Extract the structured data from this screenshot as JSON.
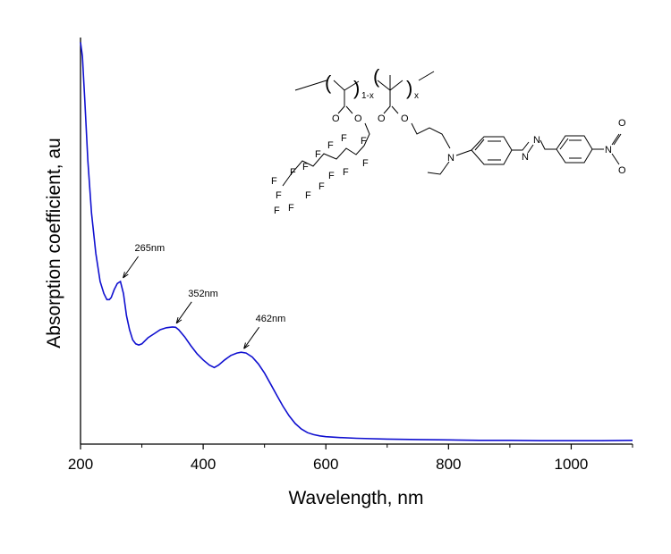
{
  "chart_data": {
    "type": "line",
    "title": "",
    "xlabel": "Wavelength, nm",
    "ylabel": "Absorption coefficient, au",
    "xlim": [
      200,
      1100
    ],
    "ylim": [
      0,
      1.0
    ],
    "x_ticks": [
      200,
      400,
      600,
      800,
      1000
    ],
    "y_ticks_labeled": false,
    "grid": false,
    "legend": "none",
    "series_color": "#1010d0",
    "series": [
      {
        "x": [
          200,
          203,
          207,
          212,
          218,
          225,
          232,
          238,
          243,
          247,
          250,
          255,
          260,
          265,
          270,
          275,
          280,
          285,
          290,
          295,
          300,
          310,
          320,
          330,
          340,
          350,
          355,
          360,
          370,
          380,
          390,
          400,
          410,
          418,
          425,
          435,
          445,
          455,
          462,
          470,
          480,
          490,
          500,
          510,
          520,
          530,
          540,
          550,
          560,
          570,
          580,
          590,
          600,
          620,
          650,
          700,
          750,
          800,
          850,
          900,
          950,
          1000,
          1050,
          1100
        ],
        "y": [
          0.995,
          0.96,
          0.85,
          0.7,
          0.57,
          0.47,
          0.4,
          0.37,
          0.355,
          0.355,
          0.36,
          0.38,
          0.395,
          0.4,
          0.37,
          0.315,
          0.28,
          0.255,
          0.245,
          0.242,
          0.245,
          0.26,
          0.27,
          0.28,
          0.285,
          0.287,
          0.286,
          0.28,
          0.262,
          0.24,
          0.22,
          0.205,
          0.192,
          0.186,
          0.192,
          0.205,
          0.216,
          0.222,
          0.224,
          0.222,
          0.212,
          0.195,
          0.172,
          0.145,
          0.117,
          0.09,
          0.066,
          0.047,
          0.033,
          0.024,
          0.019,
          0.016,
          0.014,
          0.012,
          0.01,
          0.008,
          0.007,
          0.006,
          0.005,
          0.005,
          0.004,
          0.004,
          0.004,
          0.005
        ]
      }
    ],
    "annotations": [
      {
        "text": "265nm",
        "x": 265,
        "y": 0.4
      },
      {
        "text": "352nm",
        "x": 352,
        "y": 0.287
      },
      {
        "text": "462nm",
        "x": 462,
        "y": 0.224
      }
    ]
  },
  "structure": {
    "paren_open": "(",
    "paren_close": ")",
    "sub_1x": "1-x",
    "sub_x": "x",
    "oxygen": "O",
    "nitrogen": "N",
    "fluorine": "F"
  }
}
